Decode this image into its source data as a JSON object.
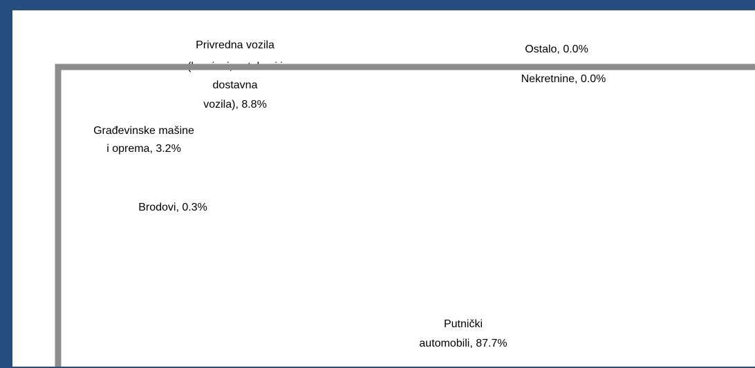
{
  "chart_data": {
    "type": "pie",
    "labels": [
      [
        "Ostalo, 0.0%"
      ],
      [
        "Nekretnine, 0.0%"
      ],
      [
        "Putnički",
        "automobili, 87.7%"
      ],
      [
        "Brodovi, 0.3%"
      ],
      [
        "Građevinske mašine",
        "i oprema, 3.2%"
      ],
      [
        "Privredna vozila",
        "(kamioni, autobusi i",
        "dostavna",
        "vozila), 8.8%"
      ]
    ],
    "values": [
      0.0,
      0.0,
      87.7,
      0.3,
      3.2,
      8.8
    ],
    "colors": [
      "#ffffff",
      "#ffffff",
      "#ffffff",
      "#ffffff",
      "#ffffff",
      "#ffffff"
    ]
  }
}
